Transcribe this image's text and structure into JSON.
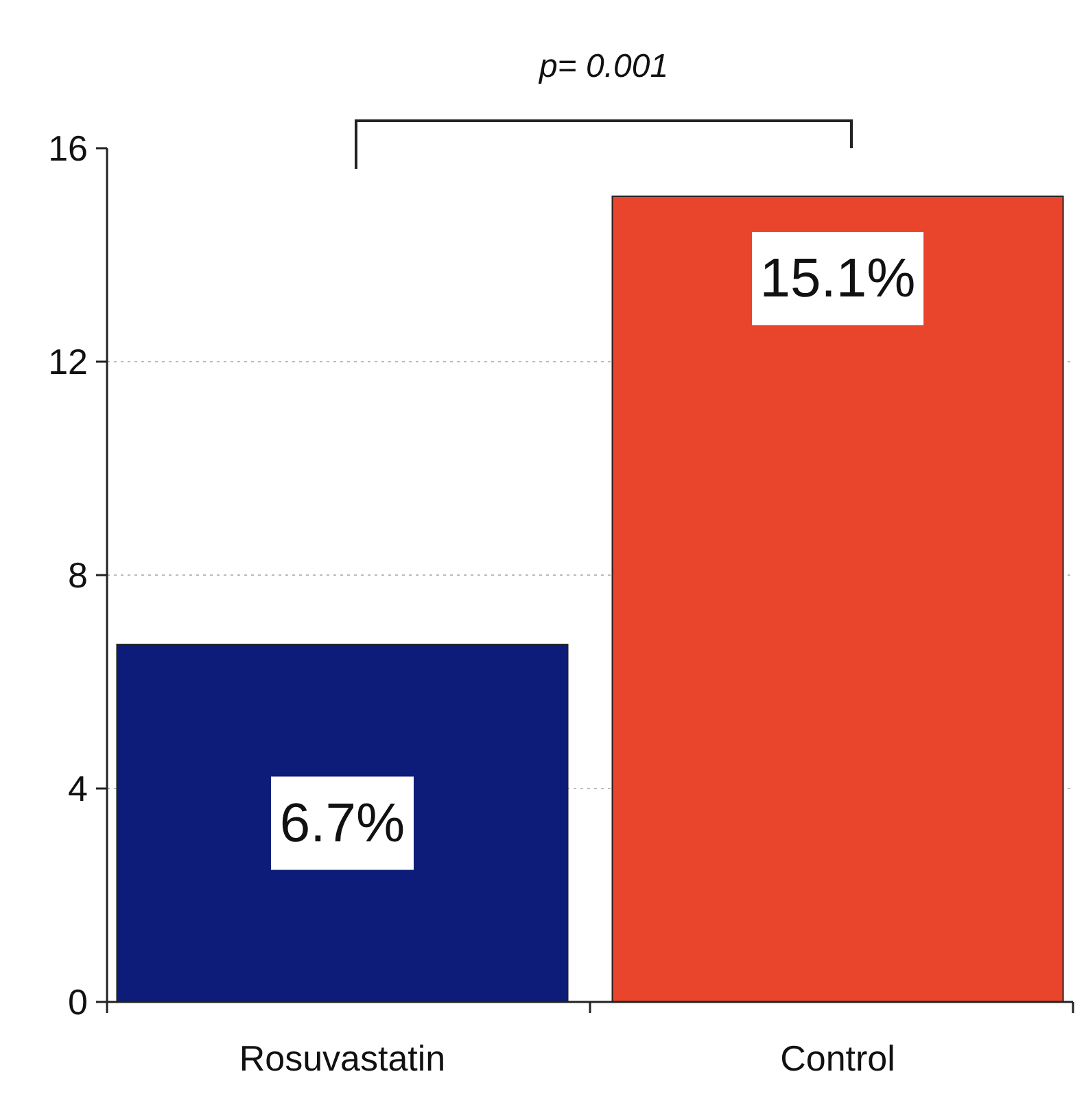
{
  "chart_data": {
    "type": "bar",
    "categories": [
      "Rosuvastatin",
      "Control"
    ],
    "values": [
      6.7,
      15.1
    ],
    "colors": [
      "#0c1c78",
      "#e9452d"
    ],
    "value_labels": [
      "6.7%",
      "15.1%"
    ],
    "ylim": [
      0,
      16
    ],
    "yticks": [
      0,
      4,
      8,
      12,
      16
    ],
    "grid": "y",
    "annotations": [
      "p= 0.001"
    ]
  }
}
